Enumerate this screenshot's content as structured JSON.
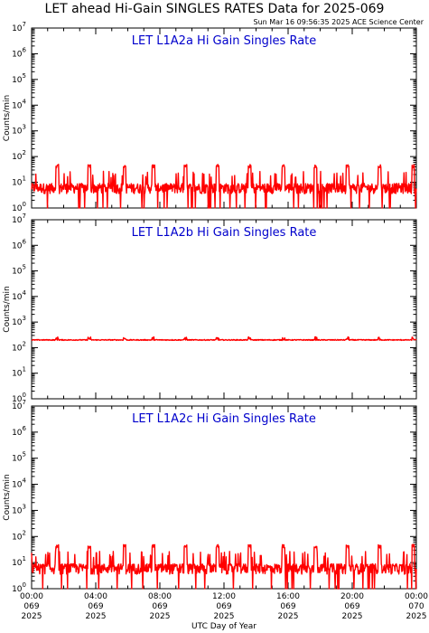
{
  "title": "LET ahead Hi-Gain SINGLES RATES Data for 2025-069",
  "timestamp": "Sun Mar 16 09:56:35 2025 ACE Science Center",
  "xlabel": "UTC Day of Year",
  "colors": {
    "series": "#ff0000",
    "panel_title": "#0000cc",
    "axes": "#000000",
    "background": "#ffffff"
  },
  "chart_data": [
    {
      "type": "line",
      "title": "LET L1A2a Hi Gain Singles Rate",
      "ylabel": "Counts/min",
      "yscale": "log",
      "ylim": [
        1,
        10000000
      ],
      "xlim": [
        0,
        24
      ],
      "yticks": [
        "10^0",
        "10^1",
        "10^2",
        "10^3",
        "10^4",
        "10^5",
        "10^6",
        "10^7"
      ],
      "series": [
        {
          "baseline": 6,
          "spike_value": 45,
          "spike_hours": [
            1.6,
            3.6,
            5.8,
            7.6,
            9.6,
            11.6,
            13.6,
            15.7,
            17.7,
            19.7,
            21.7,
            23.8
          ]
        }
      ]
    },
    {
      "type": "line",
      "title": "LET L1A2b Hi Gain Singles Rate",
      "ylabel": "Counts/min",
      "yscale": "log",
      "ylim": [
        1,
        10000000
      ],
      "xlim": [
        0,
        24
      ],
      "yticks": [
        "10^0",
        "10^1",
        "10^2",
        "10^3",
        "10^4",
        "10^5",
        "10^6",
        "10^7"
      ],
      "series": [
        {
          "baseline": 200,
          "spike_value": 240,
          "spike_hours": [
            1.6,
            3.6,
            5.8,
            7.6,
            9.6,
            11.6,
            13.6,
            15.7,
            17.7,
            19.7,
            21.7,
            23.8
          ]
        }
      ]
    },
    {
      "type": "line",
      "title": "LET L1A2c Hi Gain Singles Rate",
      "ylabel": "Counts/min",
      "yscale": "log",
      "ylim": [
        1,
        10000000
      ],
      "xlim": [
        0,
        24
      ],
      "yticks": [
        "10^0",
        "10^1",
        "10^2",
        "10^3",
        "10^4",
        "10^5",
        "10^6",
        "10^7"
      ],
      "series": [
        {
          "baseline": 6,
          "spike_value": 45,
          "spike_hours": [
            1.6,
            3.6,
            5.8,
            7.6,
            9.6,
            11.6,
            13.6,
            15.7,
            17.7,
            19.7,
            21.7,
            23.8
          ]
        }
      ]
    }
  ],
  "x_ticks": [
    {
      "hour": 0,
      "lines": [
        "00:00",
        "069",
        "2025"
      ]
    },
    {
      "hour": 4,
      "lines": [
        "04:00",
        "069",
        "2025"
      ]
    },
    {
      "hour": 8,
      "lines": [
        "08:00",
        "069",
        "2025"
      ]
    },
    {
      "hour": 12,
      "lines": [
        "12:00",
        "069",
        "2025"
      ]
    },
    {
      "hour": 16,
      "lines": [
        "16:00",
        "069",
        "2025"
      ]
    },
    {
      "hour": 20,
      "lines": [
        "20:00",
        "069",
        "2025"
      ]
    },
    {
      "hour": 24,
      "lines": [
        "00:00",
        "070",
        "2025"
      ]
    }
  ]
}
